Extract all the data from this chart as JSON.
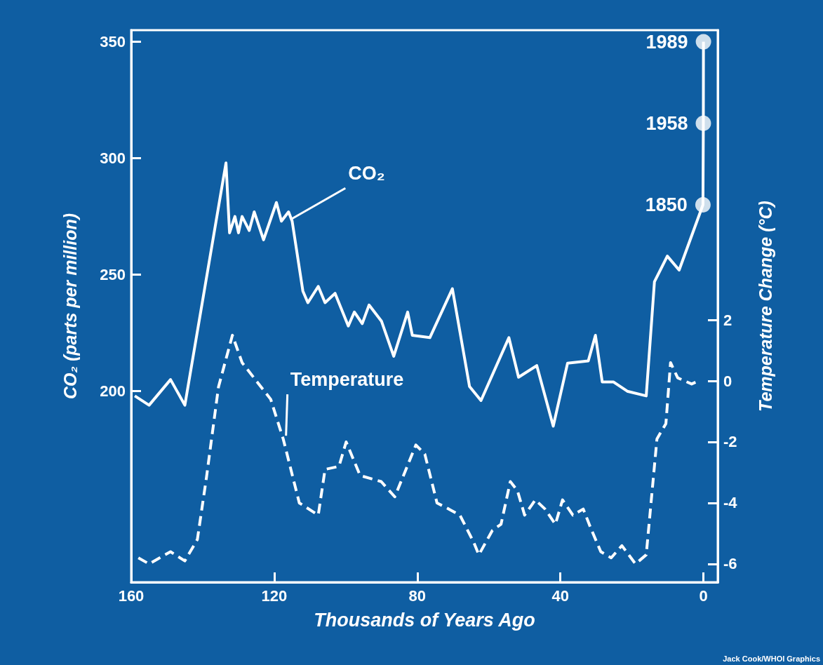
{
  "chart_data": {
    "type": "line",
    "xlabel": "Thousands of Years Ago",
    "ylabel": "CO₂ (parts per million)",
    "y2label": "Temperature Change (°C)",
    "xlim": [
      160,
      -4
    ],
    "xticks": [
      160,
      120,
      80,
      40,
      0
    ],
    "ylim": [
      118,
      355
    ],
    "yticks": [
      200,
      250,
      300,
      350
    ],
    "y2lim": [
      -6.6,
      11.5
    ],
    "y2ticks": [
      -6,
      -4,
      -2,
      0,
      2
    ],
    "series": [
      {
        "color": "#ffffff",
        "line_style": "solid",
        "marker": "none",
        "x": [
          159,
          155,
          149,
          145,
          133.5,
          132.5,
          131,
          130,
          129,
          127,
          125.6,
          123,
          119.4,
          118,
          116,
          115,
          112,
          110.6,
          107.7,
          105.8,
          103,
          99.3,
          97.6,
          95.4,
          93.5,
          90,
          86.6,
          82.7,
          81.4,
          76.5,
          70.2,
          65.4,
          62.2,
          54.4,
          51.7,
          46.6,
          42,
          38,
          32.2,
          30.2,
          28.3,
          25.2,
          21.3,
          16,
          13.7,
          10.1,
          6.8,
          0.14,
          0.03,
          0
        ],
        "values": [
          198,
          194,
          205,
          194,
          298,
          268,
          275,
          268,
          275,
          269,
          277,
          265,
          281,
          273,
          277,
          273,
          243,
          238,
          245,
          238,
          242,
          228,
          234,
          229,
          237,
          230,
          215,
          234,
          224,
          223,
          244,
          202,
          196,
          223,
          206,
          211,
          185,
          212,
          213,
          224,
          204,
          204,
          200,
          198,
          247,
          258,
          252,
          280,
          315,
          350
        ]
      },
      {
        "axis": "y2",
        "color": "#ffffff",
        "line_style": "dashed",
        "marker": "none",
        "x": [
          158,
          155,
          149,
          145,
          141.5,
          139,
          135.6,
          131.7,
          129,
          121,
          117.5,
          113,
          107.7,
          105.8,
          101.9,
          99.9,
          96,
          90.1,
          86.3,
          80.4,
          77.9,
          74.5,
          71.2,
          68.1,
          64.2,
          62.8,
          59,
          56.6,
          54,
          52,
          50,
          47,
          44.3,
          41.4,
          39.4,
          36.5,
          33.6,
          31.6,
          28.7,
          25.8,
          22.8,
          19,
          16,
          13,
          10.5,
          9.2,
          7.2,
          5.3,
          3.3,
          1.4
        ],
        "values": [
          -5.8,
          -6.0,
          -5.6,
          -5.9,
          -5.2,
          -3.2,
          -0.2,
          1.5,
          0.6,
          -0.6,
          -1.9,
          -4.0,
          -4.4,
          -2.9,
          -2.8,
          -2.0,
          -3.1,
          -3.3,
          -3.8,
          -2.1,
          -2.4,
          -4.0,
          -4.2,
          -4.4,
          -5.3,
          -5.7,
          -4.9,
          -4.7,
          -3.3,
          -3.6,
          -4.4,
          -3.9,
          -4.2,
          -4.7,
          -3.9,
          -4.4,
          -4.2,
          -4.8,
          -5.6,
          -5.8,
          -5.4,
          -6.0,
          -5.7,
          -1.9,
          -1.4,
          0.6,
          0.1,
          0,
          -0.1,
          0
        ]
      },
      {
        "type": "scatter",
        "color": "#ffffff",
        "marker": "circle",
        "x": [
          0.14,
          0.03,
          0
        ],
        "values": [
          280,
          315,
          350
        ]
      }
    ],
    "annotations": [
      {
        "text": "CO₂",
        "x": 116,
        "y": 273
      },
      {
        "text": "Temperature",
        "x": 117.5,
        "y": 180
      },
      {
        "text": "1850",
        "x": 0.14,
        "y": 280
      },
      {
        "text": "1958",
        "x": 0.03,
        "y": 315
      },
      {
        "text": "1989",
        "x": 0,
        "y": 350
      },
      "Jack Cook/WHOI Graphics"
    ]
  }
}
